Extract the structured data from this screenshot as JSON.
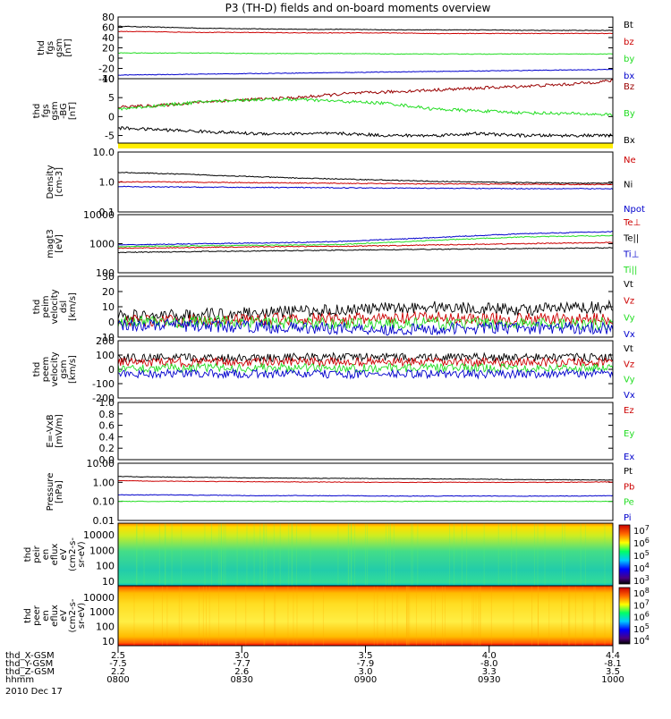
{
  "title": "P3 (TH-D) fields and on-board moments overview",
  "date_label": "2010 Dec 17",
  "colors": {
    "black": "#000000",
    "red": "#cc0000",
    "darkred": "#990000",
    "green": "#22dd22",
    "blue": "#0000cc",
    "yellow": "#ffee00"
  },
  "chart_data": [
    {
      "type": "line",
      "ylabel": [
        "thd",
        "fgs",
        "gsm",
        "[nT]"
      ],
      "ylim": [
        -40,
        80
      ],
      "yticks": [
        "80",
        "60",
        "40",
        "20",
        "0",
        "-20",
        "-40"
      ],
      "series": [
        {
          "name": "Bt",
          "color": "#000000",
          "trend": [
            62,
            60,
            58,
            57,
            56,
            56,
            55,
            55,
            55,
            54,
            54,
            54
          ]
        },
        {
          "name": "bz",
          "color": "#cc0000",
          "trend": [
            52,
            51,
            50,
            50,
            49,
            49,
            49,
            48,
            48,
            48,
            48,
            48
          ]
        },
        {
          "name": "by",
          "color": "#22dd22",
          "trend": [
            10,
            10,
            10,
            9,
            9,
            9,
            8,
            8,
            8,
            8,
            8,
            8
          ]
        },
        {
          "name": "bx",
          "color": "#0000cc",
          "trend": [
            -33,
            -32,
            -31,
            -30,
            -29,
            -28,
            -27,
            -26,
            -25,
            -24,
            -23,
            -22
          ]
        }
      ]
    },
    {
      "type": "line",
      "ylabel": [
        "thd",
        "fgs",
        "gsm",
        "-BG",
        "[nT]"
      ],
      "ylim": [
        -7,
        10
      ],
      "yticks": [
        "10",
        "5",
        "0",
        "-5"
      ],
      "series": [
        {
          "name": "Bz",
          "color": "#990000",
          "trend": [
            2.5,
            3,
            4,
            4.5,
            5,
            6,
            6.5,
            7,
            7.5,
            8,
            8.5,
            9.5
          ]
        },
        {
          "name": "By",
          "color": "#22dd22",
          "trend": [
            2,
            3,
            4,
            4.5,
            4.5,
            4,
            3.5,
            2,
            1.5,
            1,
            0.8,
            0.5
          ]
        },
        {
          "name": "Bx",
          "color": "#000000",
          "trend": [
            -3,
            -3.5,
            -4,
            -4.5,
            -4.5,
            -4.5,
            -5,
            -5,
            -4.5,
            -5,
            -5,
            -5
          ]
        }
      ]
    },
    {
      "type": "line",
      "log": true,
      "ylabel": [
        "Density",
        "[cm-3]"
      ],
      "ylim": [
        0.1,
        10
      ],
      "yticks": [
        "10.0",
        "1.0",
        "0.1"
      ],
      "series": [
        {
          "name": "Ne",
          "color": "#cc0000",
          "trend": [
            1.0,
            1.0,
            0.98,
            0.95,
            0.93,
            0.9,
            0.88,
            0.86,
            0.85,
            0.84,
            0.83,
            0.82
          ]
        },
        {
          "name": "Ni",
          "color": "#000000",
          "trend": [
            2.1,
            1.9,
            1.7,
            1.5,
            1.35,
            1.25,
            1.15,
            1.05,
            1.0,
            0.95,
            0.92,
            0.9
          ]
        },
        {
          "name": "Npot",
          "color": "#0000cc",
          "trend": [
            0.7,
            0.68,
            0.67,
            0.66,
            0.65,
            0.64,
            0.63,
            0.62,
            0.61,
            0.6,
            0.6,
            0.59
          ]
        }
      ]
    },
    {
      "type": "line",
      "log": true,
      "ylabel": [
        "magt3",
        "[eV]"
      ],
      "ylim": [
        100,
        10000
      ],
      "yticks": [
        "10000",
        "1000",
        "100"
      ],
      "series": [
        {
          "name": "Te⊥",
          "color": "#cc0000",
          "trend": [
            700,
            720,
            750,
            780,
            800,
            820,
            850,
            900,
            950,
            1000,
            1050,
            1100
          ]
        },
        {
          "name": "Te||",
          "color": "#000000",
          "trend": [
            500,
            520,
            540,
            560,
            580,
            600,
            620,
            640,
            660,
            680,
            700,
            720
          ]
        },
        {
          "name": "Ti⊥",
          "color": "#0000cc",
          "trend": [
            900,
            950,
            1000,
            1050,
            1100,
            1200,
            1400,
            1600,
            1900,
            2200,
            2400,
            2600
          ]
        },
        {
          "name": "Ti||",
          "color": "#22dd22",
          "trend": [
            800,
            820,
            850,
            880,
            900,
            950,
            1100,
            1300,
            1500,
            1700,
            1800,
            1900
          ]
        }
      ]
    },
    {
      "type": "line",
      "ylabel": [
        "thd",
        "peim",
        "velocity",
        "dsl",
        "[km/s]"
      ],
      "ylim": [
        -10,
        30
      ],
      "yticks": [
        "30",
        "20",
        "10",
        "0",
        "-10"
      ],
      "series": [
        {
          "name": "Vt",
          "color": "#000000",
          "trend": [
            4,
            4,
            5,
            6,
            7,
            8,
            9,
            10,
            9,
            8,
            9,
            10
          ]
        },
        {
          "name": "Vz",
          "color": "#cc0000",
          "trend": [
            1,
            1,
            1,
            2,
            2,
            2,
            2,
            3,
            2,
            2,
            2,
            2
          ]
        },
        {
          "name": "Vy",
          "color": "#22dd22",
          "trend": [
            0,
            0,
            0,
            0,
            -1,
            -1,
            -1,
            -1,
            -1,
            -1,
            -1,
            -1
          ]
        },
        {
          "name": "Vx",
          "color": "#0000cc",
          "trend": [
            -2,
            -2,
            -3,
            -3,
            -4,
            -4,
            -5,
            -5,
            -4,
            -4,
            -4,
            -4
          ]
        }
      ]
    },
    {
      "type": "line",
      "ylabel": [
        "thd",
        "peem",
        "velocity",
        "gsm",
        "[km/s]"
      ],
      "ylim": [
        -200,
        200
      ],
      "yticks": [
        "200",
        "100",
        "0",
        "-100",
        "-200"
      ],
      "series": [
        {
          "name": "Vt",
          "color": "#000000",
          "trend": [
            80,
            80,
            80,
            82,
            84,
            85,
            85,
            84,
            83,
            82,
            82,
            82
          ]
        },
        {
          "name": "Vz",
          "color": "#cc0000",
          "trend": [
            50,
            50,
            50,
            52,
            52,
            52,
            52,
            50,
            50,
            50,
            50,
            50
          ]
        },
        {
          "name": "Vy",
          "color": "#22dd22",
          "trend": [
            10,
            10,
            10,
            10,
            10,
            10,
            10,
            10,
            10,
            10,
            10,
            10
          ]
        },
        {
          "name": "Vx",
          "color": "#0000cc",
          "trend": [
            -30,
            -30,
            -30,
            -32,
            -32,
            -34,
            -34,
            -32,
            -32,
            -30,
            -30,
            -30
          ]
        }
      ]
    },
    {
      "type": "line",
      "ylabel": [
        "E=-VxB",
        "[mV/m]"
      ],
      "ylim": [
        0,
        1
      ],
      "yticks": [
        "1.0",
        "0.8",
        "0.6",
        "0.4",
        "0.2",
        "0.0"
      ],
      "series": [
        {
          "name": "Ez",
          "color": "#cc0000",
          "trend": []
        },
        {
          "name": "Ey",
          "color": "#22dd22",
          "trend": []
        },
        {
          "name": "Ex",
          "color": "#0000cc",
          "trend": []
        }
      ]
    },
    {
      "type": "line",
      "log": true,
      "ylabel": [
        "Pressure",
        "[nPa]"
      ],
      "ylim": [
        0.01,
        10
      ],
      "yticks": [
        "10.00",
        "1.00",
        "0.10",
        "0.01"
      ],
      "series": [
        {
          "name": "Pt",
          "color": "#000000",
          "trend": [
            2.0,
            1.9,
            1.8,
            1.7,
            1.65,
            1.6,
            1.55,
            1.5,
            1.45,
            1.4,
            1.35,
            1.3
          ]
        },
        {
          "name": "Pb",
          "color": "#cc0000",
          "trend": [
            1.2,
            1.15,
            1.1,
            1.08,
            1.05,
            1.02,
            1.0,
            1.0,
            1.0,
            1.0,
            1.0,
            1.05
          ]
        },
        {
          "name": "Pe",
          "color": "#22dd22",
          "trend": [
            0.1,
            0.1,
            0.1,
            0.1,
            0.1,
            0.1,
            0.1,
            0.1,
            0.1,
            0.1,
            0.1,
            0.1
          ]
        },
        {
          "name": "Pi",
          "color": "#0000cc",
          "trend": [
            0.22,
            0.22,
            0.21,
            0.2,
            0.2,
            0.2,
            0.19,
            0.19,
            0.19,
            0.19,
            0.19,
            0.2
          ]
        }
      ]
    },
    {
      "type": "heatmap",
      "ylabel": [
        "thd",
        "peir",
        "en",
        "eflux",
        "eV",
        "(cm2-s-",
        "sr-eV)"
      ],
      "ylim": [
        10,
        30000
      ],
      "yticks": [
        "10000",
        "1000",
        "100",
        "10"
      ],
      "colorbar": [
        "10^7",
        "10^6",
        "10^5",
        "10^4",
        "10^3"
      ]
    },
    {
      "type": "heatmap",
      "ylabel": [
        "thd",
        "peer",
        "en",
        "eflux",
        "eV",
        "(cm2-s-",
        "sr-eV)"
      ],
      "ylim": [
        10,
        30000
      ],
      "yticks": [
        "10000",
        "1000",
        "100",
        "10"
      ],
      "colorbar": [
        "10^8",
        "10^7",
        "10^6",
        "10^5",
        "10^4"
      ]
    }
  ],
  "x_axis": {
    "row_labels": [
      "thd_X-GSM",
      "thd_Y-GSM",
      "thd_Z-GSM",
      "hhmm"
    ],
    "columns": [
      {
        "x": "2.5",
        "y": "-7.5",
        "z": "2.2",
        "t": "0800"
      },
      {
        "x": "3.0",
        "y": "-7.7",
        "z": "2.6",
        "t": "0830"
      },
      {
        "x": "3.5",
        "y": "-7.9",
        "z": "3.0",
        "t": "0900"
      },
      {
        "x": "4.0",
        "y": "-8.0",
        "z": "3.3",
        "t": "0930"
      },
      {
        "x": "4.4",
        "y": "-8.1",
        "z": "3.5",
        "t": "1000"
      }
    ]
  }
}
